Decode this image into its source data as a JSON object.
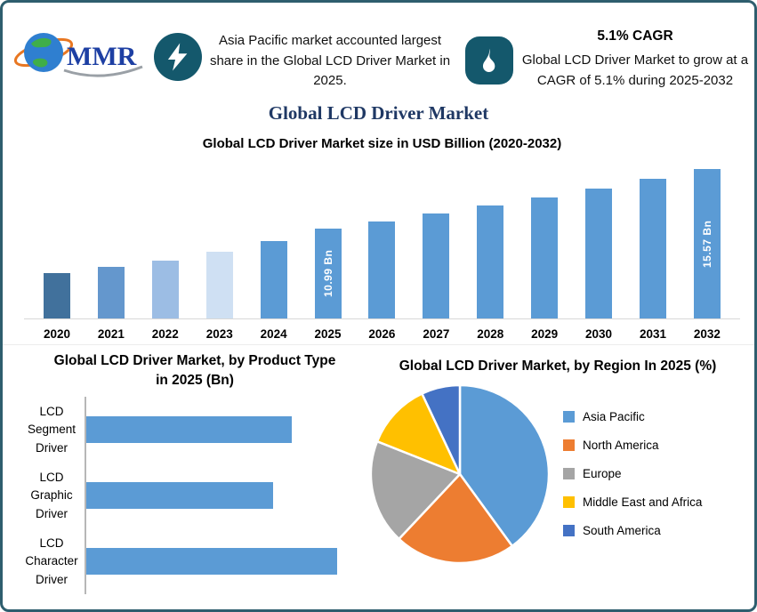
{
  "header": {
    "logo_text": "MMR",
    "icons": {
      "left_badge": "lightning-icon",
      "right_badge": "flame-icon"
    },
    "callout_left": "Asia Pacific market accounted largest share in the Global LCD Driver Market in 2025.",
    "cagr": "5.1% CAGR",
    "callout_right": "Global LCD Driver Market to grow at a CAGR of 5.1% during 2025-2032"
  },
  "page_title": "Global LCD Driver Market",
  "colors": {
    "border": "#2e5e6e",
    "badge": "#14586c",
    "title": "#1f3864",
    "bar_primary": "#5b9bd5"
  },
  "chart_data": [
    {
      "type": "bar",
      "title": "Global LCD Driver Market size in USD Billion (2020-2032)",
      "ylabel": "USD Billion",
      "categories": [
        "2020",
        "2021",
        "2022",
        "2023",
        "2024",
        "2025",
        "2026",
        "2027",
        "2028",
        "2029",
        "2030",
        "2031",
        "2032"
      ],
      "values": [
        7.5,
        8.0,
        8.5,
        9.2,
        10.0,
        10.99,
        11.55,
        12.14,
        12.76,
        13.41,
        14.1,
        14.82,
        15.57
      ],
      "bar_labels": {
        "2025": "10.99 Bn",
        "2032": "15.57 Bn"
      },
      "bar_colors": [
        "#41719c",
        "#6497cd",
        "#9cbde4",
        "#cfe0f3",
        "#5b9bd5",
        "#5b9bd5",
        "#5b9bd5",
        "#5b9bd5",
        "#5b9bd5",
        "#5b9bd5",
        "#5b9bd5",
        "#5b9bd5",
        "#5b9bd5"
      ]
    },
    {
      "type": "bar",
      "orientation": "horizontal",
      "title": "Global LCD Driver Market, by Product Type in 2025 (Bn)",
      "categories": [
        "LCD Segment Driver",
        "LCD Graphic Driver",
        "LCD Character Driver"
      ],
      "values": [
        3.85,
        3.5,
        4.7
      ],
      "bar_color": "#5b9bd5"
    },
    {
      "type": "pie",
      "title": "Global LCD Driver Market, by Region In 2025 (%)",
      "legend_position": "right",
      "categories": [
        "Asia Pacific",
        "North America",
        "Europe",
        "Middle East and Africa",
        "South America"
      ],
      "values": [
        40,
        22,
        19,
        12,
        7
      ],
      "colors": [
        "#5b9bd5",
        "#ed7d31",
        "#a5a5a5",
        "#ffc000",
        "#4472c4"
      ]
    }
  ]
}
